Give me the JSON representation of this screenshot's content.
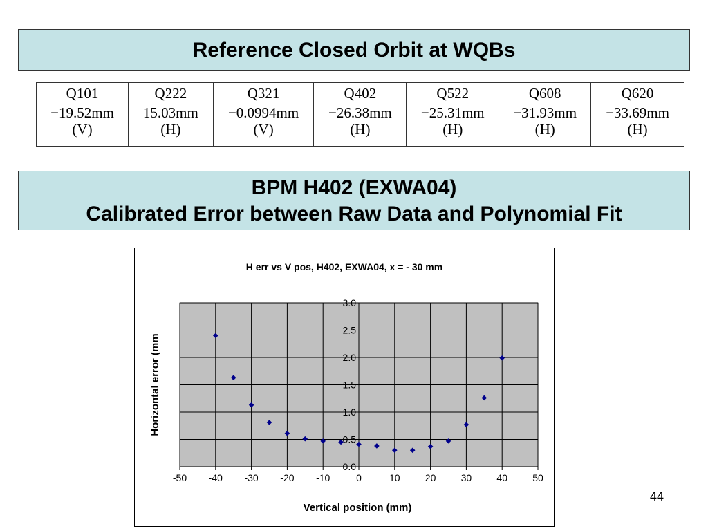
{
  "banner1": {
    "title": "Reference Closed Orbit at WQBs"
  },
  "banner2": {
    "line1": "BPM H402 (EXWA04)",
    "line2": "Calibrated Error between Raw Data and Polynomial Fit"
  },
  "table": {
    "headers": [
      "Q101",
      "Q222",
      "Q321",
      "Q402",
      "Q522",
      "Q608",
      "Q620"
    ],
    "values": [
      {
        "value": "−19.52mm",
        "plane": "(V)"
      },
      {
        "value": "15.03mm",
        "plane": "(H)"
      },
      {
        "value": "−0.0994mm",
        "plane": "(V)"
      },
      {
        "value": "−26.38mm",
        "plane": "(H)"
      },
      {
        "value": "−25.31mm",
        "plane": "(H)"
      },
      {
        "value": "−31.93mm",
        "plane": "(H)"
      },
      {
        "value": "−33.69mm",
        "plane": "(H)"
      }
    ]
  },
  "chart_data": {
    "type": "scatter",
    "title": "H err vs V pos, H402, EXWA04, x = - 30 mm",
    "xlabel": "Vertical position (mm)",
    "ylabel": "Horizontal error (mm",
    "xlim": [
      -50,
      50
    ],
    "ylim": [
      0,
      3
    ],
    "xticks": [
      "-50",
      "-40",
      "-30",
      "-20",
      "-10",
      "0",
      "10",
      "20",
      "30",
      "40",
      "50"
    ],
    "yticks": [
      "0.0",
      "0.5",
      "1.0",
      "1.5",
      "2.0",
      "2.5",
      "3.0"
    ],
    "grid": true,
    "marker_color": "#00008b",
    "plot_background": "#c0c0c0",
    "points": [
      {
        "x": -40,
        "y": 2.4
      },
      {
        "x": -35,
        "y": 1.63
      },
      {
        "x": -30,
        "y": 1.13
      },
      {
        "x": -25,
        "y": 0.81
      },
      {
        "x": -20,
        "y": 0.61
      },
      {
        "x": -15,
        "y": 0.51
      },
      {
        "x": -10,
        "y": 0.47
      },
      {
        "x": -5,
        "y": 0.45
      },
      {
        "x": 0,
        "y": 0.41
      },
      {
        "x": 5,
        "y": 0.38
      },
      {
        "x": 10,
        "y": 0.3
      },
      {
        "x": 15,
        "y": 0.3
      },
      {
        "x": 20,
        "y": 0.37
      },
      {
        "x": 25,
        "y": 0.47
      },
      {
        "x": 30,
        "y": 0.77
      },
      {
        "x": 35,
        "y": 1.26
      },
      {
        "x": 40,
        "y": 1.99
      }
    ]
  },
  "page": {
    "number": "44"
  }
}
